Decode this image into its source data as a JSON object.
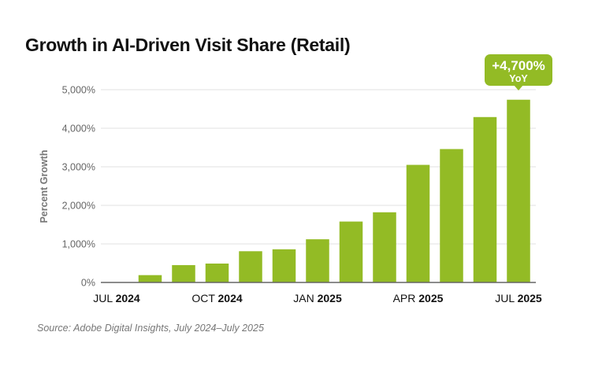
{
  "chart_data": {
    "type": "bar",
    "title": "Growth in AI-Driven Visit Share (Retail)",
    "ylabel": "Percent Growth",
    "xlabel": "",
    "ylim": [
      0,
      5000
    ],
    "yticks": [
      "0%",
      "1,000%",
      "2,000%",
      "3,000%",
      "4,000%",
      "5,000%"
    ],
    "grid": true,
    "categories": [
      "Jul 2024",
      "Aug 2024",
      "Sep 2024",
      "Oct 2024",
      "Nov 2024",
      "Dec 2024",
      "Jan 2025",
      "Feb 2025",
      "Mar 2025",
      "Apr 2025",
      "May 2025",
      "Jun 2025",
      "Jul 2025"
    ],
    "values": [
      0,
      190,
      450,
      490,
      810,
      860,
      1120,
      1580,
      1820,
      3050,
      3460,
      4290,
      4740
    ],
    "xtick_labels": [
      {
        "index": 0,
        "month": "JUL",
        "year": "2024"
      },
      {
        "index": 3,
        "month": "OCT",
        "year": "2024"
      },
      {
        "index": 6,
        "month": "JAN",
        "year": "2025"
      },
      {
        "index": 9,
        "month": "APR",
        "year": "2025"
      },
      {
        "index": 12,
        "month": "JUL",
        "year": "2025"
      }
    ],
    "annotation": {
      "index": 12,
      "value": "+4,700%",
      "label": "YoY"
    },
    "bar_color": "#93bb25",
    "source": "Source: Adobe Digital Insights, July 2024–July 2025"
  }
}
